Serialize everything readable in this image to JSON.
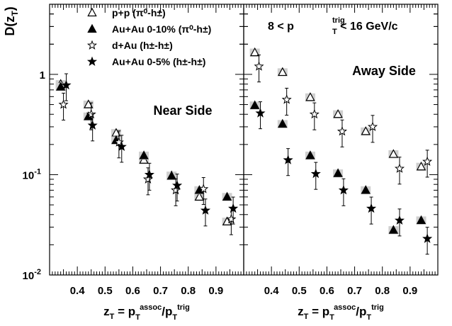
{
  "chart_data": {
    "type": "scatter",
    "ylabel": "D(z_T)",
    "xlabel": "z_T = p_T^assoc/p_T^trig",
    "y_scale": "log",
    "ylim": [
      0.01,
      5.0
    ],
    "xlim": [
      0.3,
      1.0
    ],
    "x_tick_labels": [
      "0.4",
      "0.5",
      "0.6",
      "0.7",
      "0.8",
      "0.9"
    ],
    "y_tick_labels": [
      {
        "base": "10",
        "exp": "-2",
        "value": 0.01
      },
      {
        "base": "10",
        "exp": "-1",
        "value": 0.1
      },
      {
        "base": "1",
        "exp": "",
        "value": 1
      }
    ],
    "legend": {
      "placement": "top-left of left panel",
      "entries": [
        {
          "marker": "open-triangle",
          "label": "p+p (π⁰-h±)"
        },
        {
          "marker": "filled-triangle",
          "label": "Au+Au 0-10% (π⁰-h±)"
        },
        {
          "marker": "open-star",
          "label": "d+Au (h±-h±)"
        },
        {
          "marker": "filled-star",
          "label": "Au+Au 0-5% (h±-h±)"
        }
      ]
    },
    "trigger_label": {
      "pre": "8 < p",
      "sub": "T",
      "sup": "trig",
      "post": " < 16 GeV/c"
    },
    "panels": [
      {
        "name": "Near Side",
        "series": [
          {
            "marker": "open-triangle",
            "x": [
              0.34,
              0.44,
              0.54,
              0.64,
              0.74,
              0.84,
              0.94
            ],
            "y": [
              0.8,
              0.5,
              0.26,
              0.14,
              0.098,
              0.06,
              0.034
            ]
          },
          {
            "marker": "filled-triangle",
            "x": [
              0.34,
              0.44,
              0.54,
              0.64,
              0.74,
              0.84,
              0.94
            ],
            "y": [
              0.75,
              0.38,
              0.22,
              0.155,
              0.097,
              0.07,
              0.06
            ]
          },
          {
            "marker": "open-star",
            "x": [
              0.35,
              0.45,
              0.55,
              0.655,
              0.755,
              0.855,
              0.955
            ],
            "y": [
              0.5,
              0.4,
              0.21,
              0.09,
              0.07,
              0.072,
              0.036
            ]
          },
          {
            "marker": "filled-star",
            "x": [
              0.36,
              0.455,
              0.56,
              0.66,
              0.76,
              0.862,
              0.962
            ],
            "y": [
              0.78,
              0.31,
              0.19,
              0.1,
              0.078,
              0.044,
              0.046
            ]
          }
        ]
      },
      {
        "name": "Away Side",
        "series": [
          {
            "marker": "open-triangle",
            "x": [
              0.34,
              0.44,
              0.54,
              0.64,
              0.74,
              0.84,
              0.94
            ],
            "y": [
              1.65,
              1.05,
              0.59,
              0.4,
              0.27,
              0.16,
              0.12
            ]
          },
          {
            "marker": "filled-triangle",
            "x": [
              0.34,
              0.44,
              0.54,
              0.64,
              0.74,
              0.84,
              0.94
            ],
            "y": [
              0.49,
              0.32,
              0.155,
              0.103,
              0.07,
              0.028,
              0.035
            ]
          },
          {
            "marker": "open-star",
            "x": [
              0.355,
              0.455,
              0.555,
              0.655,
              0.765,
              0.862,
              0.962
            ],
            "y": [
              1.2,
              0.56,
              0.4,
              0.27,
              0.3,
              0.115,
              0.135
            ]
          },
          {
            "marker": "filled-star",
            "x": [
              0.36,
              0.46,
              0.56,
              0.66,
              0.76,
              0.862,
              0.962
            ],
            "y": [
              0.41,
              0.14,
              0.102,
              0.07,
              0.046,
              0.035,
              0.023
            ]
          }
        ]
      }
    ]
  }
}
